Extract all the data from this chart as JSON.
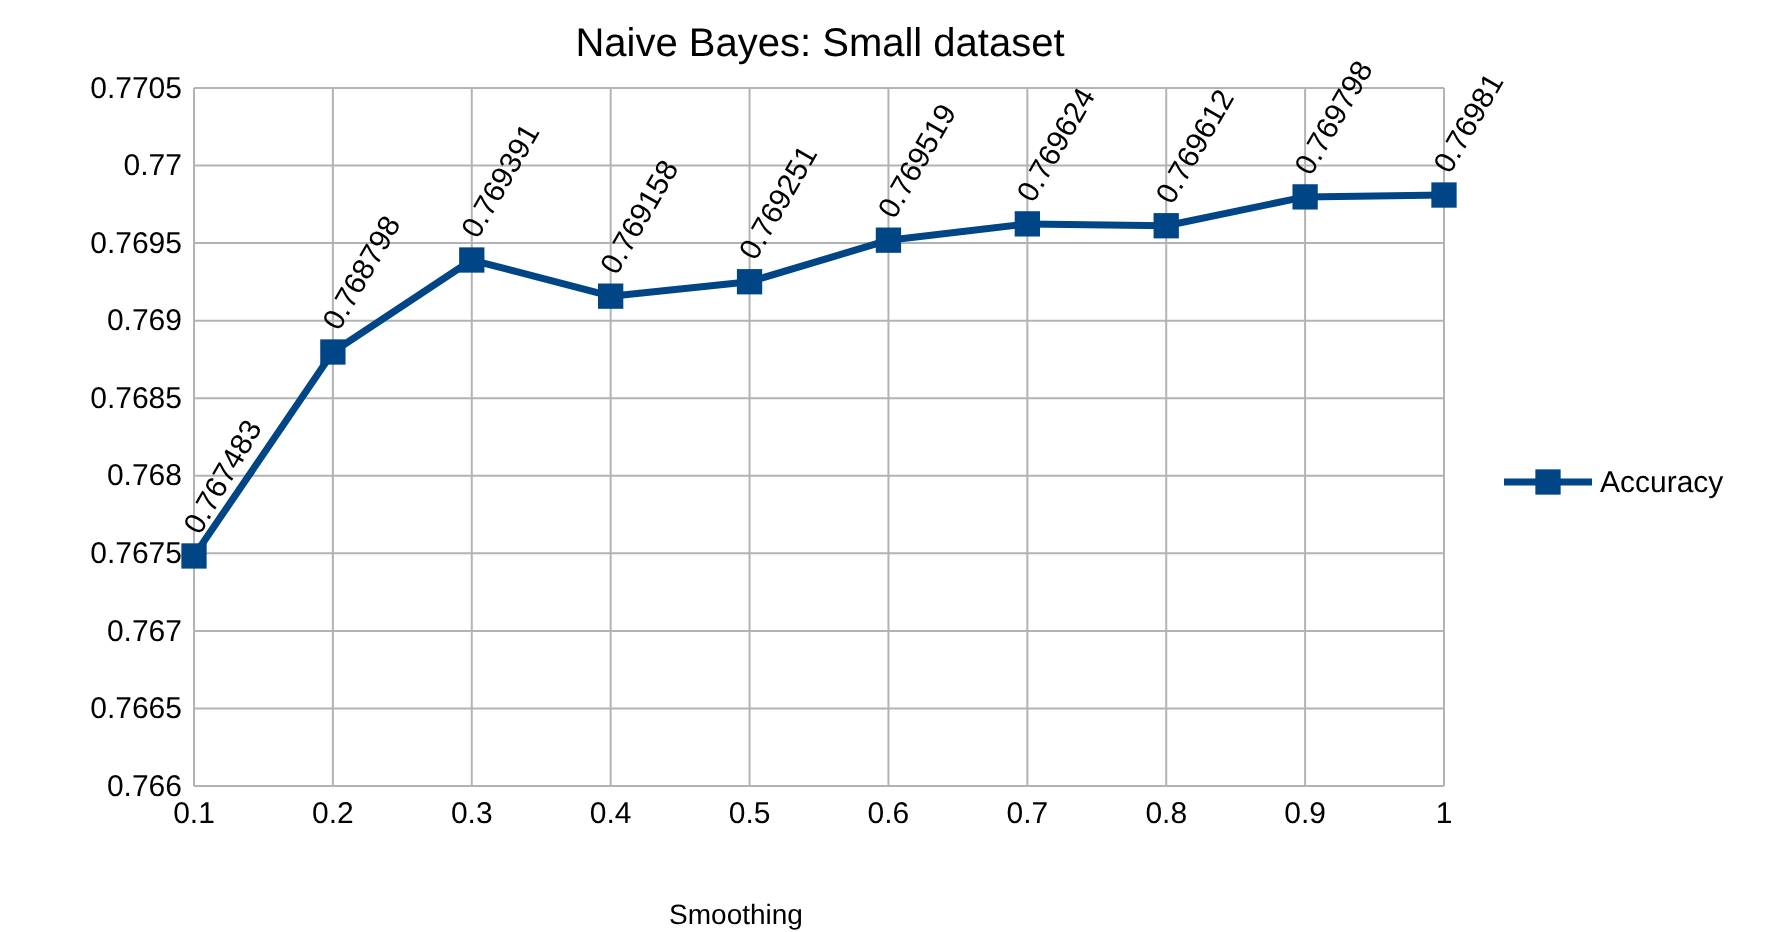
{
  "chart_data": {
    "type": "line",
    "title": "Naive Bayes: Small dataset",
    "xlabel": "Smoothing",
    "categories": [
      "0.1",
      "0.2",
      "0.3",
      "0.4",
      "0.5",
      "0.6",
      "0.7",
      "0.8",
      "0.9",
      "1"
    ],
    "series": [
      {
        "name": "Accuracy",
        "color": "#004586",
        "values": [
          0.767483,
          0.768798,
          0.769391,
          0.769158,
          0.769251,
          0.769519,
          0.769624,
          0.769612,
          0.769798,
          0.76981
        ]
      }
    ],
    "ylim": [
      0.766,
      0.7705
    ],
    "yticks": [
      0.766,
      0.7665,
      0.767,
      0.7675,
      0.768,
      0.7685,
      0.769,
      0.7695,
      0.77,
      0.7705
    ],
    "grid": true,
    "legend": "right",
    "marker": "square",
    "line_style": "solid",
    "data_labels": true
  }
}
